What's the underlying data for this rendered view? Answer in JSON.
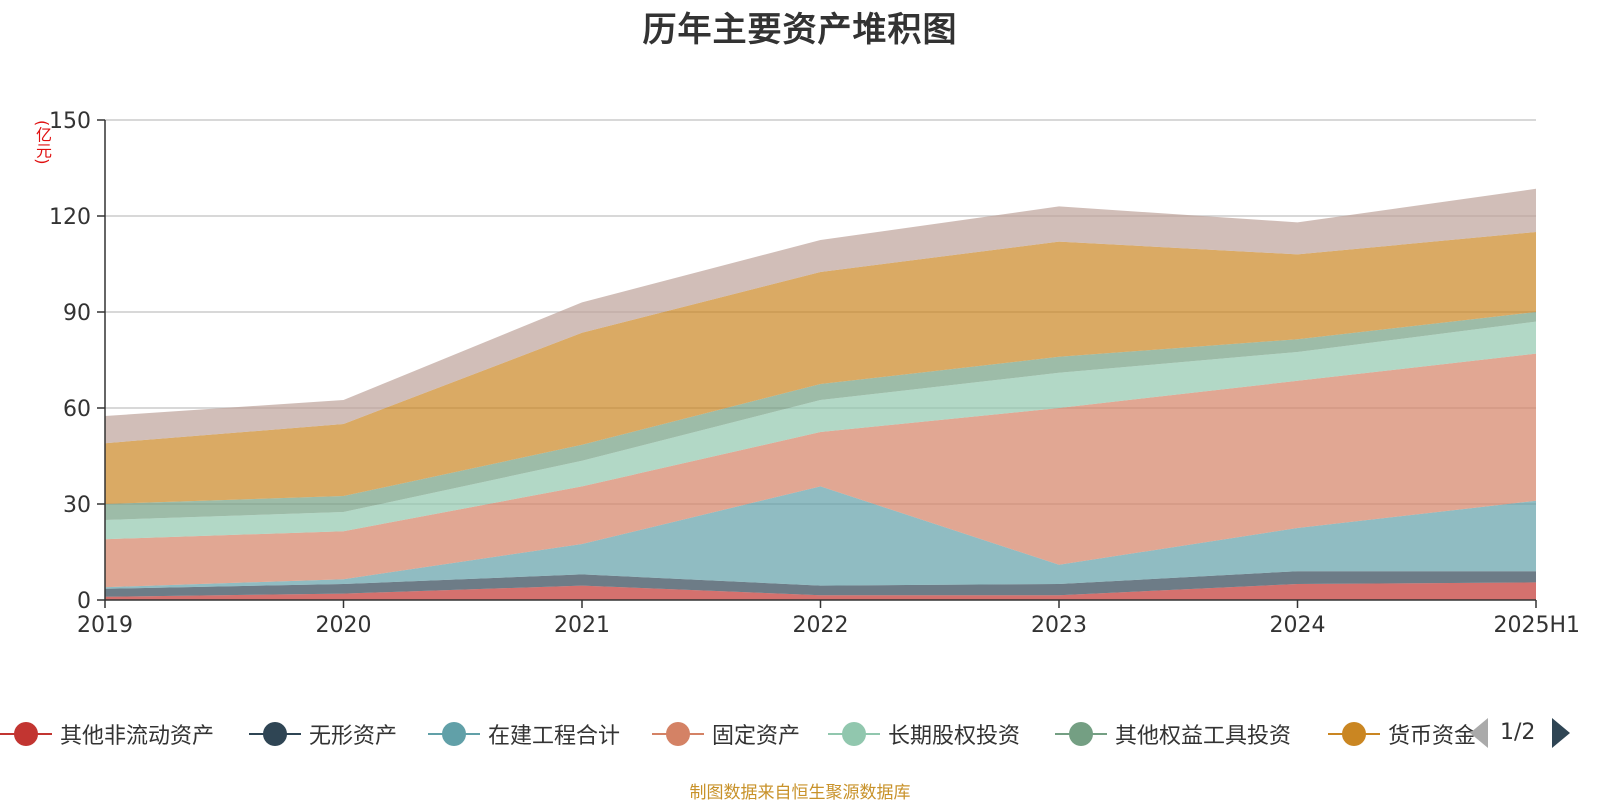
{
  "chart_data": {
    "type": "area",
    "title": "历年主要资产堆积图",
    "unit": "(亿元)",
    "stacked": true,
    "categories": [
      "2019",
      "2020",
      "2021",
      "2022",
      "2023",
      "2024",
      "2025H1"
    ],
    "ylim": [
      0,
      150
    ],
    "yticks": [
      0,
      30,
      60,
      90,
      120,
      150
    ],
    "grid": true,
    "legend_position": "bottom",
    "series": [
      {
        "name": "其他非流动资产",
        "color": "#c23531",
        "values": [
          1,
          2,
          4.5,
          1.5,
          1.5,
          5,
          5.5
        ]
      },
      {
        "name": "无形资产",
        "color": "#2f4554",
        "values": [
          2.5,
          3,
          3.5,
          3,
          3.5,
          4,
          3.5
        ]
      },
      {
        "name": "在建工程合计",
        "color": "#61a0a8",
        "values": [
          0.5,
          1.5,
          9.5,
          31,
          6,
          13.5,
          22
        ]
      },
      {
        "name": "固定资产",
        "color": "#d48265",
        "values": [
          15,
          15,
          18,
          17,
          49,
          46,
          46
        ]
      },
      {
        "name": "长期股权投资",
        "color": "#91c7ae",
        "values": [
          6,
          6,
          8,
          10,
          11,
          9,
          10
        ]
      },
      {
        "name": "其他权益工具投资",
        "color": "#749f83",
        "values": [
          5,
          5,
          5,
          5,
          5,
          4,
          3
        ]
      },
      {
        "name": "货币资金",
        "color": "#ca8622",
        "values": [
          19,
          22.5,
          35,
          35,
          36,
          26.5,
          25
        ]
      },
      {
        "name": "",
        "color": "#bda29a",
        "values": [
          8.5,
          7.5,
          9.5,
          10,
          11,
          10,
          13.5
        ]
      }
    ]
  },
  "legend": {
    "page_indicator": "1/2"
  },
  "source_note": "制图数据来自恒生聚源数据库"
}
